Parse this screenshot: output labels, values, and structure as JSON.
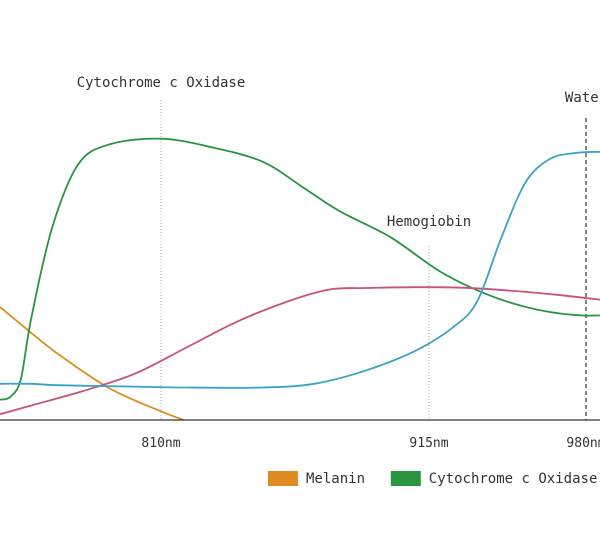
{
  "chart_data": {
    "type": "line",
    "title": "",
    "xlabel": "",
    "ylabel": "",
    "x_ticks": [
      {
        "value": 810,
        "label": "810nm"
      },
      {
        "value": 915,
        "label": "915nm"
      },
      {
        "value": 980,
        "label": "980nm"
      }
    ],
    "xlim": [
      748,
      1000
    ],
    "ylim": [
      0,
      100
    ],
    "grid": false,
    "legend_placement": "bottom-right",
    "annotations": [
      {
        "x": 810,
        "label": "Cytochrome c Oxidase",
        "line_style": "dotted"
      },
      {
        "x": 915,
        "label": "Hemogiobin",
        "line_style": "dotted"
      },
      {
        "x": 980,
        "label": "Water",
        "line_style": "dashed"
      }
    ],
    "series": [
      {
        "name": "Melanin",
        "color": "#e08c22",
        "legend": true,
        "points": [
          [
            748,
            39
          ],
          [
            756,
            33
          ],
          [
            770,
            23
          ],
          [
            790,
            11
          ],
          [
            810,
            3
          ],
          [
            819,
            0
          ]
        ]
      },
      {
        "name": "Cytochrome c Oxidase",
        "color": "#2a9440",
        "legend": true,
        "points": [
          [
            748,
            7
          ],
          [
            752,
            8
          ],
          [
            756,
            14
          ],
          [
            760,
            35
          ],
          [
            768,
            66
          ],
          [
            778,
            88
          ],
          [
            790,
            95
          ],
          [
            810,
            97
          ],
          [
            830,
            94
          ],
          [
            850,
            89
          ],
          [
            866,
            80
          ],
          [
            880,
            72
          ],
          [
            900,
            63
          ],
          [
            920,
            51
          ],
          [
            940,
            43
          ],
          [
            960,
            38
          ],
          [
            980,
            36
          ],
          [
            1000,
            37
          ]
        ]
      },
      {
        "name": "Hemoglobin",
        "color": "#c8527a",
        "legend": false,
        "points": [
          [
            748,
            2
          ],
          [
            760,
            5
          ],
          [
            780,
            10
          ],
          [
            800,
            16
          ],
          [
            820,
            25
          ],
          [
            840,
            34
          ],
          [
            860,
            41
          ],
          [
            876,
            45
          ],
          [
            890,
            45.5
          ],
          [
            910,
            45.8
          ],
          [
            930,
            45.6
          ],
          [
            950,
            44.5
          ],
          [
            970,
            43
          ],
          [
            990,
            41
          ],
          [
            1000,
            40
          ]
        ]
      },
      {
        "name": "Water",
        "color": "#3aa3c6",
        "legend": false,
        "points": [
          [
            748,
            12.5
          ],
          [
            760,
            12.5
          ],
          [
            770,
            12
          ],
          [
            800,
            11.5
          ],
          [
            820,
            11.2
          ],
          [
            850,
            11.2
          ],
          [
            870,
            12.5
          ],
          [
            890,
            17
          ],
          [
            910,
            24
          ],
          [
            925,
            32
          ],
          [
            935,
            41
          ],
          [
            945,
            63
          ],
          [
            955,
            82
          ],
          [
            965,
            90
          ],
          [
            975,
            92
          ],
          [
            985,
            92.5
          ],
          [
            1000,
            92
          ]
        ]
      }
    ]
  }
}
